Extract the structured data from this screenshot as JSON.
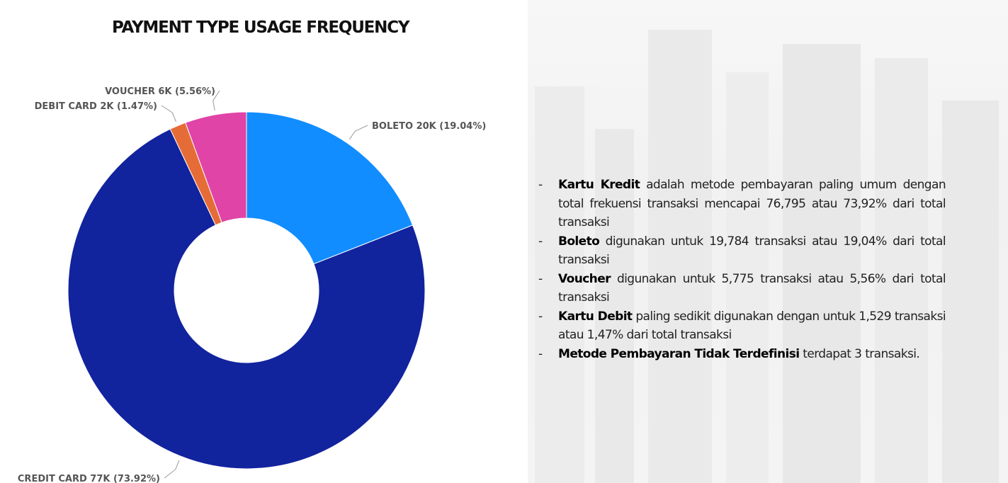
{
  "title": "PAYMENT TYPE USAGE FREQUENCY",
  "chart_data": {
    "type": "pie",
    "donut": true,
    "slices": [
      {
        "category": "BOLETO",
        "value": 19784,
        "percent": 19.04,
        "label": "BOLETO 20K (19.04%)",
        "color": "#118DFF"
      },
      {
        "category": "CREDIT CARD",
        "value": 76795,
        "percent": 73.92,
        "label": "CREDIT CARD 77K (73.92%)",
        "color": "#12239E"
      },
      {
        "category": "DEBIT CARD",
        "value": 1529,
        "percent": 1.47,
        "label": "DEBIT CARD 2K (1.47%)",
        "color": "#E66C37"
      },
      {
        "category": "VOUCHER",
        "value": 5775,
        "percent": 5.56,
        "label": "VOUCHER 6K (5.56%)",
        "color": "#E044A7"
      }
    ]
  },
  "description": [
    {
      "bold": "Kartu Kredit",
      "text": " adalah metode pembayaran paling umum dengan total frekuensi transaksi mencapai 76,795 atau 73,92% dari total transaksi"
    },
    {
      "bold": "Boleto",
      "text": " digunakan untuk 19,784 transaksi atau 19,04% dari total transaksi"
    },
    {
      "bold": "Voucher",
      "text": " digunakan untuk 5,775 transaksi atau 5,56% dari total transaksi"
    },
    {
      "bold": "Kartu Debit",
      "text": " paling sedikit digunakan dengan untuk 1,529 transaksi atau 1,47% dari total transaksi"
    },
    {
      "bold": "Metode Pembayaran Tidak Terdefinisi",
      "text": " terdapat 3 transaksi."
    }
  ],
  "bullet_symbol": "-"
}
